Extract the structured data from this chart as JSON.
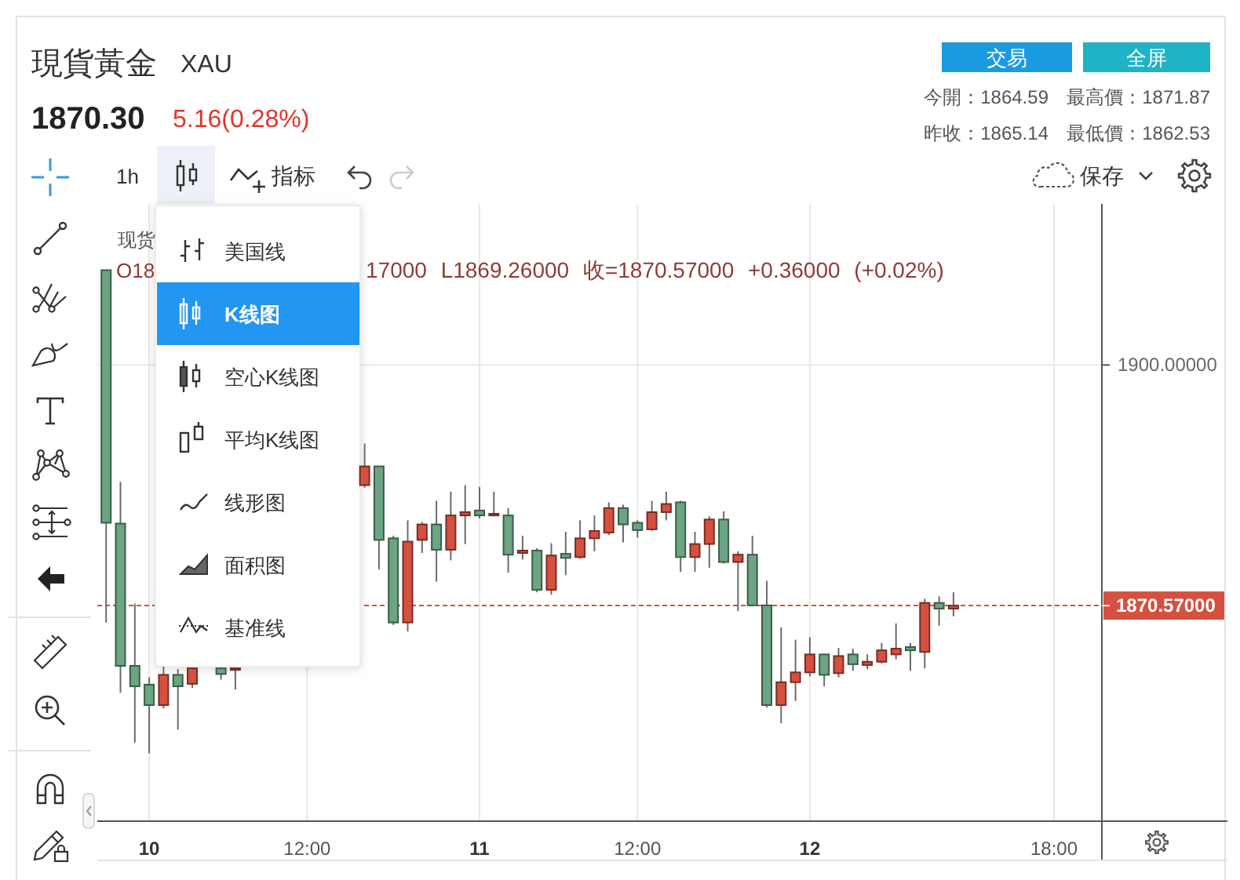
{
  "chart_data": {
    "type": "candlestick",
    "title": "現貨黃金",
    "subtitle": "XAU",
    "annotations": [
      "1870.30",
      "5.16(0.28%)",
      "交易",
      "全屏",
      "今開：1864.59",
      "最高價：1871.87",
      "昨收：1865.14",
      "最低價：1862.53",
      "1h",
      "指标",
      "保存",
      "现货",
      "O18",
      "17000 L1869.26000 收=1870.57000 +0.36000 (+0.02%)",
      "美国线",
      "K线图",
      "空心K线图",
      "平均K线图",
      "线形图",
      "面积图",
      "基准线"
    ],
    "categories": [
      null,
      null,
      null,
      "10",
      null,
      null,
      null,
      null,
      null,
      null,
      null,
      null,
      null,
      null,
      "12:00",
      null,
      null,
      null,
      null,
      null,
      null,
      null,
      null,
      null,
      null,
      null,
      "11",
      null,
      null,
      null,
      null,
      null,
      null,
      null,
      null,
      null,
      null,
      "12:00",
      null,
      null,
      null,
      null,
      null,
      null,
      null,
      null,
      null,
      null,
      null,
      "12",
      null,
      null,
      null,
      null,
      null,
      null,
      null,
      null,
      null,
      null,
      null,
      null,
      null,
      null,
      null,
      null,
      "18:00",
      null,
      null,
      null
    ],
    "ohlc": [
      [
        1911.6,
        1911.6,
        1868.5,
        1880.7
      ],
      [
        1880.6,
        1885.7,
        1859.9,
        1863.2
      ],
      [
        1863.2,
        1870.8,
        1853.8,
        1860.7
      ],
      [
        1860.9,
        1861.8,
        1852.5,
        1858.4
      ],
      [
        1858.4,
        1863.1,
        1858.0,
        1862.1
      ],
      [
        1862.1,
        1862.8,
        1855.4,
        1860.7
      ],
      [
        1861.0,
        1862.9,
        1860.5,
        1862.9
      ],
      null,
      [
        1862.9,
        1862.9,
        1861.5,
        1862.2
      ],
      [
        1862.9,
        1862.9,
        1860.3,
        1862.9
      ],
      null,
      null,
      null,
      null,
      null,
      null,
      null,
      null,
      [
        1885.3,
        1890.4,
        1885.0,
        1887.6
      ],
      [
        1887.6,
        1887.6,
        1875.0,
        1878.6
      ],
      [
        1878.8,
        1879.1,
        1868.2,
        1868.5
      ],
      [
        1868.5,
        1881.0,
        1867.4,
        1878.4
      ],
      [
        1878.6,
        1880.8,
        1877.0,
        1880.5
      ],
      [
        1880.5,
        1883.4,
        1873.5,
        1877.4
      ],
      [
        1877.4,
        1884.5,
        1876.1,
        1881.6
      ],
      [
        1881.6,
        1885.3,
        1878.1,
        1882.0
      ],
      [
        1882.2,
        1885.1,
        1881.2,
        1881.6
      ],
      [
        1881.6,
        1884.5,
        1881.5,
        1881.8
      ],
      [
        1881.6,
        1882.5,
        1874.6,
        1876.8
      ],
      [
        1877.0,
        1879.1,
        1876.2,
        1877.3
      ],
      [
        1877.3,
        1877.6,
        1872.2,
        1872.5
      ],
      [
        1872.5,
        1878.2,
        1871.9,
        1876.7
      ],
      [
        1876.9,
        1879.6,
        1874.3,
        1876.4
      ],
      [
        1876.5,
        1881.0,
        1876.3,
        1878.8
      ],
      [
        1878.8,
        1881.6,
        1877.2,
        1879.7
      ],
      [
        1879.5,
        1883.2,
        1879.2,
        1882.5
      ],
      [
        1882.5,
        1882.9,
        1878.3,
        1880.5
      ],
      [
        1880.7,
        1881.0,
        1878.9,
        1879.8
      ],
      [
        1879.9,
        1883.4,
        1879.7,
        1882.0
      ],
      [
        1882.0,
        1884.5,
        1881.0,
        1883.0
      ],
      [
        1883.2,
        1883.4,
        1874.7,
        1876.5
      ],
      [
        1876.5,
        1879.6,
        1874.7,
        1878.1
      ],
      [
        1878.1,
        1881.5,
        1875.2,
        1881.1
      ],
      [
        1881.1,
        1882.1,
        1875.7,
        1875.9
      ],
      [
        1875.9,
        1877.2,
        1869.9,
        1876.8
      ],
      [
        1876.8,
        1879.1,
        1870.6,
        1870.6
      ],
      [
        1870.6,
        1873.6,
        1858.1,
        1858.4
      ],
      [
        1858.4,
        1867.9,
        1856.2,
        1861.2
      ],
      [
        1861.2,
        1866.4,
        1858.9,
        1862.4
      ],
      [
        1862.4,
        1866.7,
        1861.9,
        1864.6
      ],
      [
        1864.6,
        1864.6,
        1860.7,
        1862.1
      ],
      [
        1862.3,
        1865.4,
        1861.8,
        1864.4
      ],
      [
        1864.6,
        1865.3,
        1862.6,
        1863.4
      ],
      [
        1863.3,
        1864.6,
        1862.8,
        1863.7
      ],
      [
        1863.7,
        1866.0,
        1863.5,
        1865.1
      ],
      [
        1864.6,
        1868.4,
        1864.0,
        1865.3
      ],
      [
        1865.5,
        1866.0,
        1862.6,
        1865.1
      ],
      [
        1864.9,
        1871.4,
        1862.9,
        1870.9
      ],
      [
        1870.9,
        1871.7,
        1868.1,
        1870.2
      ],
      [
        1870.2,
        1872.2,
        1869.26,
        1870.57
      ],
      null,
      null,
      null,
      null,
      null,
      null,
      null,
      null,
      null,
      null
    ],
    "colors": [
      "#6ba583",
      "#6ba583",
      "#6ba583",
      "#6ba583",
      "#d5503f",
      "#6ba583",
      "#d5503f",
      null,
      "#6ba583",
      "#d5503f",
      null,
      null,
      null,
      null,
      null,
      null,
      null,
      null,
      "#d5503f",
      "#6ba583",
      "#6ba583",
      "#d5503f",
      "#d5503f",
      "#6ba583",
      "#d5503f",
      "#d5503f",
      "#6ba583",
      "#d5503f",
      "#6ba583",
      "#d5503f",
      "#6ba583",
      "#d5503f",
      "#6ba583",
      "#d5503f",
      "#d5503f",
      "#d5503f",
      "#6ba583",
      "#6ba583",
      "#d5503f",
      "#d5503f",
      "#6ba583",
      "#d5503f",
      "#d5503f",
      "#6ba583",
      "#d5503f",
      "#6ba583",
      "#6ba583",
      "#d5503f",
      "#d5503f",
      "#d5503f",
      "#6ba583",
      "#d5503f",
      "#6ba583",
      "#d5503f",
      "#d5503f",
      "#d5503f",
      "#6ba583",
      "#d5503f",
      "#6ba583",
      "#d5503f",
      null,
      null,
      null,
      null,
      null,
      null,
      null,
      null,
      null,
      null
    ],
    "ylim": [
      1844.2,
      1919.7
    ],
    "yticks": [
      {
        "value": 1870.57,
        "label": "1870.57000"
      },
      {
        "value": 1900,
        "label": "1900.00000"
      }
    ],
    "grid": true,
    "ref_lines": [
      {
        "axis": "y",
        "value": 1870.57,
        "color": "#d5503f",
        "line_style": "dashed"
      }
    ]
  }
}
